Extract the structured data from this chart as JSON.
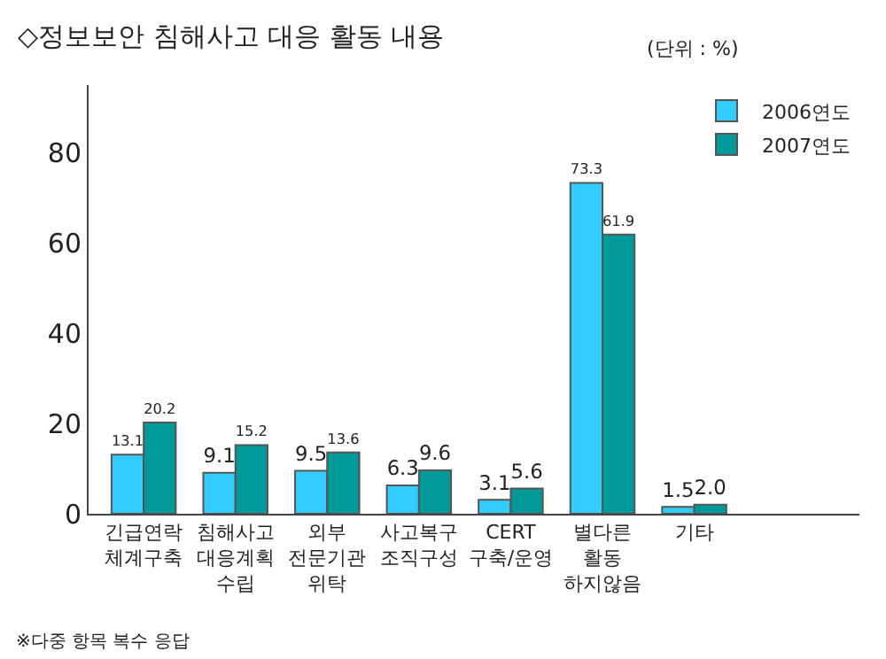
{
  "chart_data": {
    "type": "bar",
    "title": "◇정보보안 침해사고 대응 활동 내용",
    "subtitle": "(단위 : %)",
    "categories": [
      "긴급연락\n체계구축",
      "침해사고\n대응계획\n수립",
      "외부\n전문기관\n위탁",
      "사고복구\n조직구성",
      "CERT\n구축/운영",
      "별다른\n활동\n하지않음",
      "기타"
    ],
    "series": [
      {
        "name": "2006연도",
        "color": "#33ccff",
        "values": [
          13.1,
          9.1,
          9.5,
          6.3,
          3.1,
          73.3,
          1.5
        ],
        "value_labels": [
          "13.1",
          "9.1",
          "9.5",
          "6.3",
          "3.1",
          "73.3",
          "1.5"
        ]
      },
      {
        "name": "2007연도",
        "color": "#009999",
        "values": [
          20.2,
          15.2,
          13.6,
          9.6,
          5.6,
          61.9,
          2.0
        ],
        "value_labels": [
          "20.2",
          "15.2",
          "13.6",
          "9.6",
          "5.6",
          "61.9",
          "2.0"
        ]
      }
    ],
    "ylim": [
      0,
      95
    ],
    "yticks": [
      0,
      20,
      40,
      60,
      80
    ],
    "grid": false,
    "legend": "top right",
    "annotations": [
      "※다중 항목 복수 응답"
    ]
  }
}
